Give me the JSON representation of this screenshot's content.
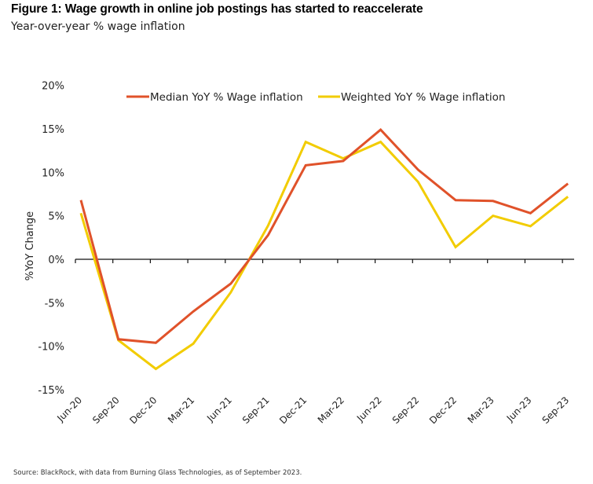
{
  "header": {
    "title": "Figure 1: Wage growth in online job postings has started to reaccelerate",
    "subtitle": "Year-over-year % wage inflation"
  },
  "footer": {
    "source": "Source: BlackRock, with data from Burning Glass Technologies, as of September 2023."
  },
  "chart_data": {
    "type": "line",
    "title": "Figure 1: Wage growth in online job postings has started to reaccelerate",
    "subtitle": "Year-over-year % wage inflation",
    "xlabel": "",
    "ylabel": "%YoY Change",
    "ylim": [
      -15,
      20
    ],
    "yticks": [
      20,
      15,
      10,
      5,
      0,
      -5,
      -10,
      -15
    ],
    "ytick_labels": [
      "20%",
      "15%",
      "10%",
      "5%",
      "0%",
      "-5%",
      "-10%",
      "-15%"
    ],
    "grid": false,
    "legend_position": "top",
    "categories": [
      "Jun-20",
      "Sep-20",
      "Dec-20",
      "Mar-21",
      "Jun-21",
      "Sep-21",
      "Dec-21",
      "Mar-22",
      "Jun-22",
      "Sep-22",
      "Dec-22",
      "Mar-23",
      "Jun-23",
      "Sep-23"
    ],
    "series": [
      {
        "name": "Median YoY % Wage inflation",
        "color": "#e0522a",
        "values": [
          6.8,
          -9.2,
          -9.6,
          -6.0,
          -2.8,
          2.8,
          10.8,
          11.3,
          14.9,
          10.3,
          6.8,
          6.7,
          5.3,
          8.7
        ]
      },
      {
        "name": "Weighted YoY % Wage inflation",
        "color": "#f2cc00",
        "values": [
          5.3,
          -9.3,
          -12.6,
          -9.7,
          -3.8,
          3.9,
          13.5,
          11.6,
          13.5,
          8.9,
          1.4,
          5.0,
          3.8,
          7.2
        ]
      }
    ]
  }
}
